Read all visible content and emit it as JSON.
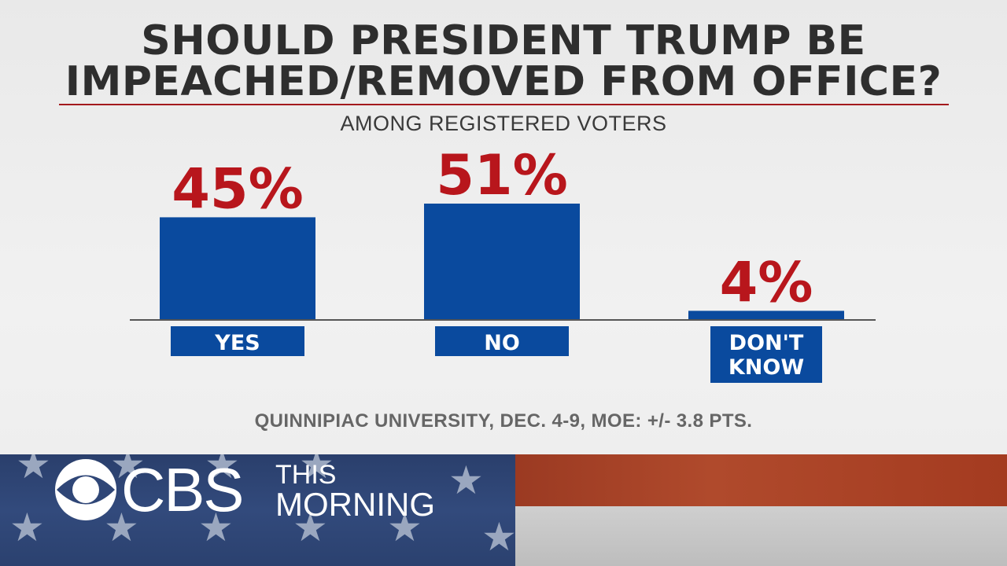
{
  "chart_data": {
    "type": "bar",
    "title_lines": [
      "SHOULD PRESIDENT TRUMP BE",
      "IMPEACHED/REMOVED FROM OFFICE?"
    ],
    "subtitle": "AMONG REGISTERED VOTERS",
    "categories": [
      "YES",
      "NO",
      "DON'T KNOW"
    ],
    "category_label_lines": [
      [
        "YES"
      ],
      [
        "NO"
      ],
      [
        "DON'T",
        "KNOW"
      ]
    ],
    "values": [
      45,
      51,
      4
    ],
    "value_labels": [
      "45%",
      "51%",
      "4%"
    ],
    "ylim": [
      0,
      100
    ],
    "grid": false,
    "bar_color": "#0a4a9e",
    "value_label_color": "#b8161c",
    "source": "QUINNIPIAC UNIVERSITY, DEC. 4-9, MOE: +/- 3.8 PTS."
  },
  "branding": {
    "network": "CBS",
    "show_line1": "THIS",
    "show_line2": "MORNING"
  },
  "colors": {
    "title_rule": "#a3191c",
    "banner_blue": "#2f4677",
    "banner_red": "#a94428",
    "banner_white": "#c8c8c8"
  }
}
